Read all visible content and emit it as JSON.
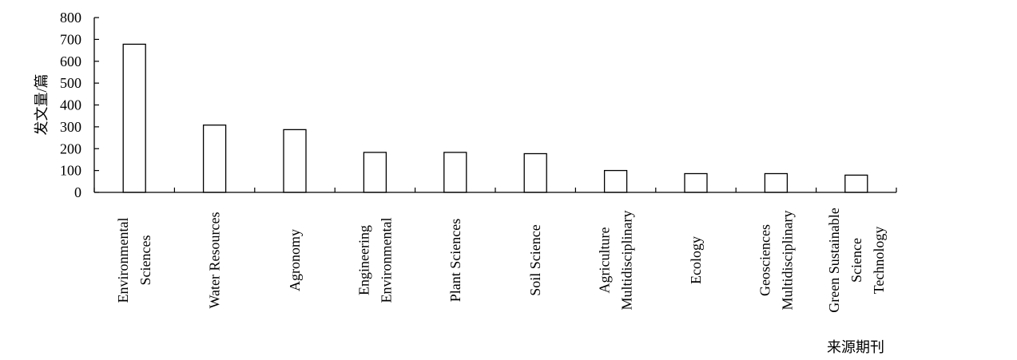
{
  "chart_data": {
    "type": "bar",
    "categories": [
      [
        "Environmental",
        "Sciences"
      ],
      [
        "Water Resources"
      ],
      [
        "Agronomy"
      ],
      [
        "Engineering",
        "Environmental"
      ],
      [
        "Plant Sciences"
      ],
      [
        "Soil Science"
      ],
      [
        "Agriculture",
        "Multidisciplinary"
      ],
      [
        "Ecology"
      ],
      [
        "Geosciences",
        "Multidisciplinary"
      ],
      [
        "Green Sustainable",
        "Science",
        "Technology"
      ]
    ],
    "values": [
      678,
      308,
      287,
      183,
      183,
      177,
      100,
      86,
      86,
      79
    ],
    "ylabel": "发文量/篇",
    "xlabel": "来源期刊",
    "ylim": [
      0,
      800
    ],
    "yticks": [
      "0",
      "100",
      "200",
      "300",
      "400",
      "500",
      "600",
      "700",
      "800"
    ],
    "grid": false,
    "bar_fill": "#ffffff",
    "bar_stroke": "#000000"
  }
}
